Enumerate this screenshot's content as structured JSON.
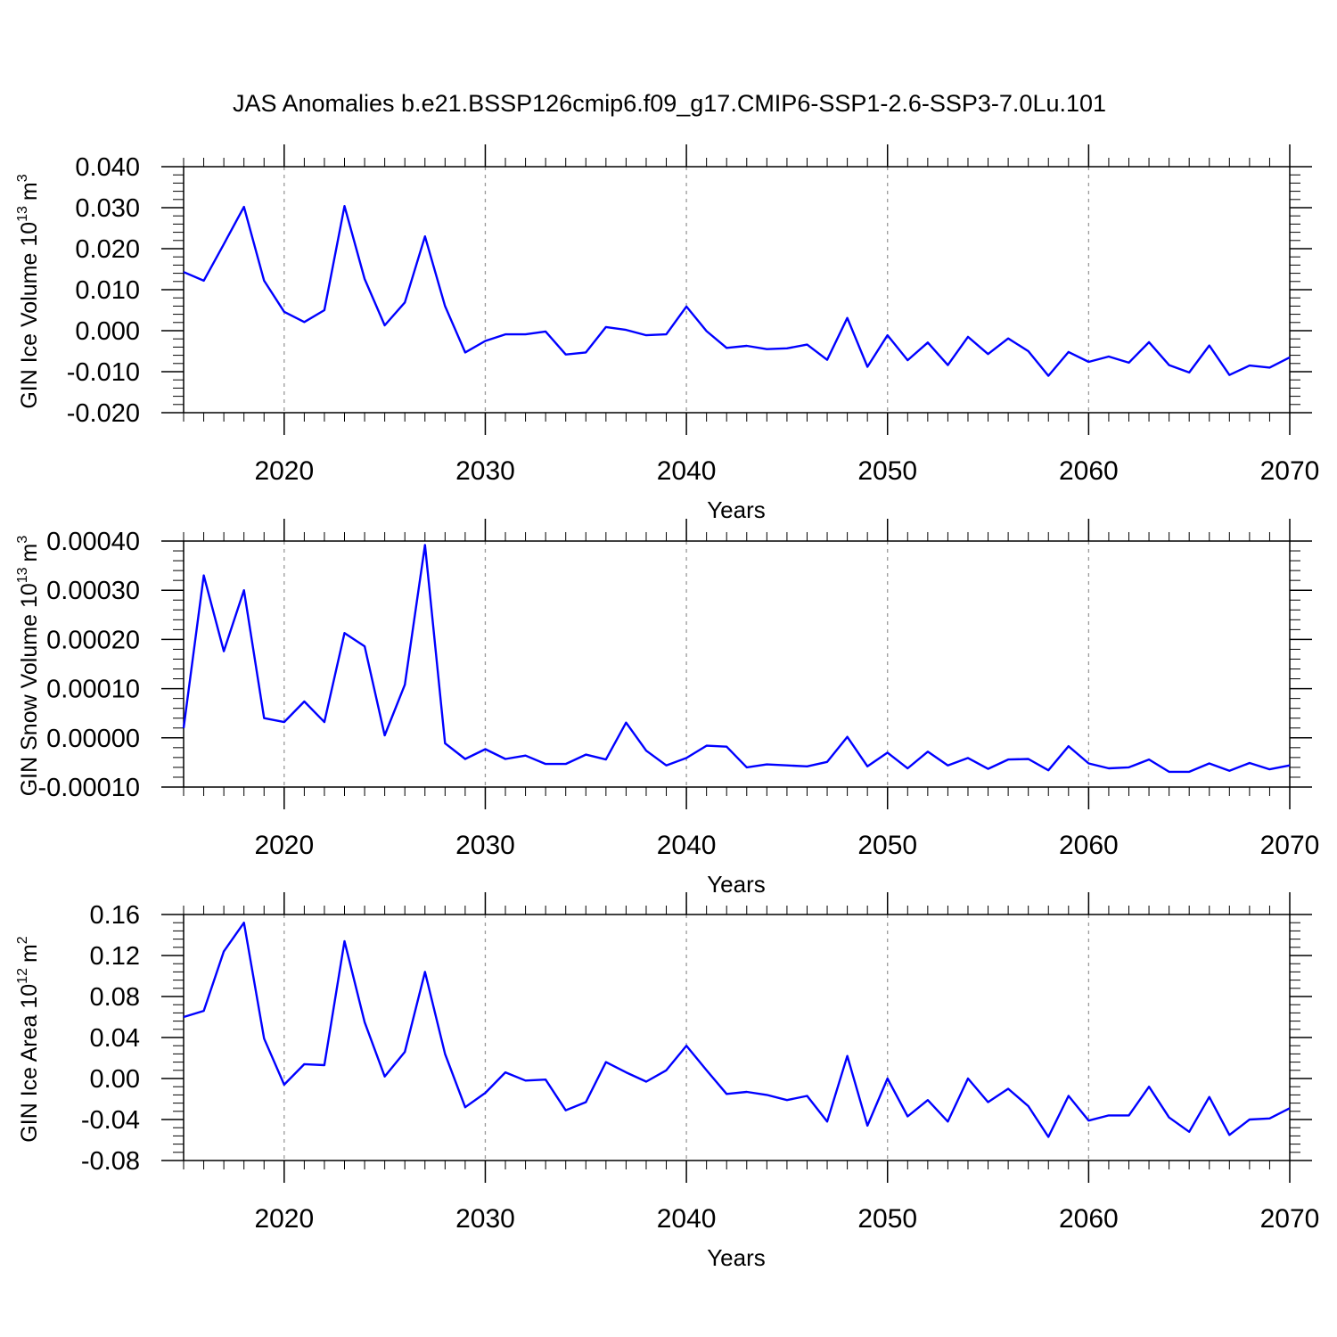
{
  "figure": {
    "title": "JAS Anomalies b.e21.BSSP126cmip6.f09_g17.CMIP6-SSP1-2.6-SSP3-7.0Lu.101",
    "line_color": "#0000ff",
    "grid_color": "#999999"
  },
  "chart_data": [
    {
      "type": "line",
      "ylabel": {
        "text": "GIN Ice Volume 10",
        "sup": "13",
        "unit": "m",
        "unit_sup": "3"
      },
      "xlabel": "Years",
      "xlim": [
        2015,
        2070
      ],
      "ylim": [
        -0.02,
        0.04
      ],
      "yticks": [
        -0.02,
        -0.01,
        0.0,
        0.01,
        0.02,
        0.03,
        0.04
      ],
      "ytick_labels": [
        "-0.020",
        "-0.010",
        "0.000",
        "0.010",
        "0.020",
        "0.030",
        "0.040"
      ],
      "xticks": [
        2020,
        2030,
        2040,
        2050,
        2060,
        2070
      ],
      "xtick_labels": [
        "2020",
        "2030",
        "2040",
        "2050",
        "2060",
        "2070"
      ],
      "grid": "dashed vertical at major x ticks",
      "series": [
        {
          "name": "GIN Ice Volume",
          "x": [
            2015,
            2016,
            2017,
            2018,
            2019,
            2020,
            2021,
            2022,
            2023,
            2024,
            2025,
            2026,
            2027,
            2028,
            2029,
            2030,
            2031,
            2032,
            2033,
            2034,
            2035,
            2036,
            2037,
            2038,
            2039,
            2040,
            2041,
            2042,
            2043,
            2044,
            2045,
            2046,
            2047,
            2048,
            2049,
            2050,
            2051,
            2052,
            2053,
            2054,
            2055,
            2056,
            2057,
            2058,
            2059,
            2060,
            2061,
            2062,
            2063,
            2064,
            2065,
            2066,
            2067,
            2068,
            2069,
            2070
          ],
          "values": [
            0.0143,
            0.0122,
            0.0211,
            0.0302,
            0.0122,
            0.0046,
            0.0021,
            0.005,
            0.0304,
            0.0126,
            0.0013,
            0.0069,
            0.023,
            0.006,
            -0.0053,
            -0.0025,
            -0.0009,
            -0.0009,
            -0.0002,
            -0.0058,
            -0.0053,
            0.0009,
            0.0002,
            -0.0011,
            -0.0009,
            0.0059,
            -0.0001,
            -0.0042,
            -0.0037,
            -0.0045,
            -0.0043,
            -0.0034,
            -0.0071,
            0.0031,
            -0.0088,
            -0.0011,
            -0.0072,
            -0.0029,
            -0.0084,
            -0.0015,
            -0.0057,
            -0.0019,
            -0.005,
            -0.011,
            -0.0052,
            -0.0076,
            -0.0063,
            -0.0078,
            -0.0028,
            -0.0084,
            -0.0102,
            -0.0036,
            -0.0108,
            -0.0085,
            -0.009,
            -0.0065
          ]
        }
      ]
    },
    {
      "type": "line",
      "ylabel": {
        "text": "GIN Snow Volume 10",
        "sup": "13",
        "unit": "m",
        "unit_sup": "3"
      },
      "xlabel": "Years",
      "xlim": [
        2015,
        2070
      ],
      "ylim": [
        -0.0001,
        0.0004
      ],
      "yticks": [
        -0.0001,
        0.0,
        0.0001,
        0.0002,
        0.0003,
        0.0004
      ],
      "ytick_labels": [
        "-0.00010",
        "0.00000",
        "0.00010",
        "0.00020",
        "0.00030",
        "0.00040"
      ],
      "xticks": [
        2020,
        2030,
        2040,
        2050,
        2060,
        2070
      ],
      "xtick_labels": [
        "2020",
        "2030",
        "2040",
        "2050",
        "2060",
        "2070"
      ],
      "grid": "dashed vertical at major x ticks",
      "series": [
        {
          "name": "GIN Snow Volume",
          "x": [
            2015,
            2016,
            2017,
            2018,
            2019,
            2020,
            2021,
            2022,
            2023,
            2024,
            2025,
            2026,
            2027,
            2028,
            2029,
            2030,
            2031,
            2032,
            2033,
            2034,
            2035,
            2036,
            2037,
            2038,
            2039,
            2040,
            2041,
            2042,
            2043,
            2044,
            2045,
            2046,
            2047,
            2048,
            2049,
            2050,
            2051,
            2052,
            2053,
            2054,
            2055,
            2056,
            2057,
            2058,
            2059,
            2060,
            2061,
            2062,
            2063,
            2064,
            2065,
            2066,
            2067,
            2068,
            2069,
            2070
          ],
          "values": [
            2e-05,
            0.00033,
            0.000176,
            0.0003,
            4e-05,
            3.2e-05,
            7.4e-05,
            3.2e-05,
            0.000213,
            0.000186,
            5e-06,
            0.000108,
            0.000392,
            -1.1e-05,
            -4.3e-05,
            -2.3e-05,
            -4.3e-05,
            -3.6e-05,
            -5.3e-05,
            -5.3e-05,
            -3.4e-05,
            -4.4e-05,
            3.1e-05,
            -2.6e-05,
            -5.6e-05,
            -4.1e-05,
            -1.6e-05,
            -1.8e-05,
            -6e-05,
            -5.4e-05,
            -5.6e-05,
            -5.8e-05,
            -4.9e-05,
            2e-06,
            -5.8e-05,
            -3e-05,
            -6.2e-05,
            -2.8e-05,
            -5.6e-05,
            -4.1e-05,
            -6.3e-05,
            -4.4e-05,
            -4.3e-05,
            -6.6e-05,
            -1.7e-05,
            -5.2e-05,
            -6.2e-05,
            -6e-05,
            -4.4e-05,
            -6.9e-05,
            -6.9e-05,
            -5.2e-05,
            -6.7e-05,
            -5.1e-05,
            -6.4e-05,
            -5.6e-05
          ]
        }
      ]
    },
    {
      "type": "line",
      "ylabel": {
        "text": "GIN Ice Area 10",
        "sup": "12",
        "unit": "m",
        "unit_sup": "2"
      },
      "xlabel": "Years",
      "xlim": [
        2015,
        2070
      ],
      "ylim": [
        -0.08,
        0.16
      ],
      "yticks": [
        -0.08,
        -0.04,
        0.0,
        0.04,
        0.08,
        0.12,
        0.16
      ],
      "ytick_labels": [
        "-0.08",
        "-0.04",
        "0.00",
        "0.04",
        "0.08",
        "0.12",
        "0.16"
      ],
      "xticks": [
        2020,
        2030,
        2040,
        2050,
        2060,
        2070
      ],
      "xtick_labels": [
        "2020",
        "2030",
        "2040",
        "2050",
        "2060",
        "2070"
      ],
      "grid": "dashed vertical at major x ticks",
      "series": [
        {
          "name": "GIN Ice Area",
          "x": [
            2015,
            2016,
            2017,
            2018,
            2019,
            2020,
            2021,
            2022,
            2023,
            2024,
            2025,
            2026,
            2027,
            2028,
            2029,
            2030,
            2031,
            2032,
            2033,
            2034,
            2035,
            2036,
            2037,
            2038,
            2039,
            2040,
            2041,
            2042,
            2043,
            2044,
            2045,
            2046,
            2047,
            2048,
            2049,
            2050,
            2051,
            2052,
            2053,
            2054,
            2055,
            2056,
            2057,
            2058,
            2059,
            2060,
            2061,
            2062,
            2063,
            2064,
            2065,
            2066,
            2067,
            2068,
            2069,
            2070
          ],
          "values": [
            0.06,
            0.066,
            0.124,
            0.152,
            0.039,
            -0.006,
            0.014,
            0.013,
            0.134,
            0.055,
            0.002,
            0.026,
            0.104,
            0.024,
            -0.028,
            -0.014,
            0.006,
            -0.002,
            -0.001,
            -0.031,
            -0.023,
            0.016,
            0.006,
            -0.003,
            0.008,
            0.032,
            0.008,
            -0.015,
            -0.013,
            -0.016,
            -0.021,
            -0.017,
            -0.042,
            0.022,
            -0.046,
            0.0,
            -0.037,
            -0.021,
            -0.042,
            0.0,
            -0.023,
            -0.01,
            -0.027,
            -0.057,
            -0.017,
            -0.041,
            -0.036,
            -0.036,
            -0.008,
            -0.038,
            -0.052,
            -0.018,
            -0.055,
            -0.04,
            -0.039,
            -0.029
          ]
        }
      ]
    }
  ]
}
